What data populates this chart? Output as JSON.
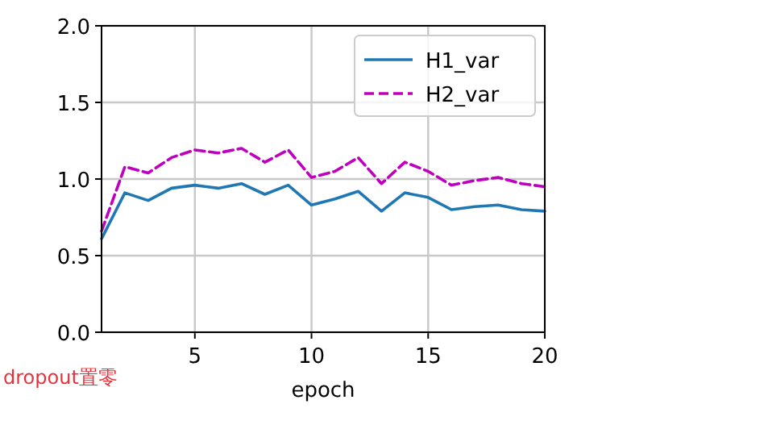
{
  "chart_data": {
    "type": "line",
    "xlabel": "epoch",
    "annotations": [
      "dropout置零"
    ],
    "x": [
      1,
      2,
      3,
      4,
      5,
      6,
      7,
      8,
      9,
      10,
      11,
      12,
      13,
      14,
      15,
      16,
      17,
      18,
      19,
      20
    ],
    "xlim": [
      1,
      20
    ],
    "xticks": [
      5,
      10,
      15,
      20
    ],
    "ylim": [
      0,
      2
    ],
    "yticks": [
      {
        "value": 0,
        "label": "0.0"
      },
      0.5,
      {
        "value": 1,
        "label": "1.0"
      },
      1.5,
      {
        "value": 2,
        "label": "2.0"
      }
    ],
    "grid": true,
    "legend": "top right",
    "series": [
      {
        "name": "H1_var",
        "color": "#1f77b4",
        "line_style": "solid",
        "values": [
          0.61,
          0.91,
          0.86,
          0.94,
          0.96,
          0.94,
          0.97,
          0.9,
          0.96,
          0.83,
          0.87,
          0.92,
          0.79,
          0.91,
          0.88,
          0.8,
          0.82,
          0.83,
          0.8,
          0.79
        ]
      },
      {
        "name": "H2_var",
        "color": "#bf00bf",
        "line_style": "dashed",
        "values": [
          0.66,
          1.08,
          1.04,
          1.14,
          1.19,
          1.17,
          1.2,
          1.11,
          1.19,
          1.01,
          1.05,
          1.14,
          0.97,
          1.11,
          1.05,
          0.96,
          0.99,
          1.01,
          0.97,
          0.95
        ]
      }
    ]
  }
}
